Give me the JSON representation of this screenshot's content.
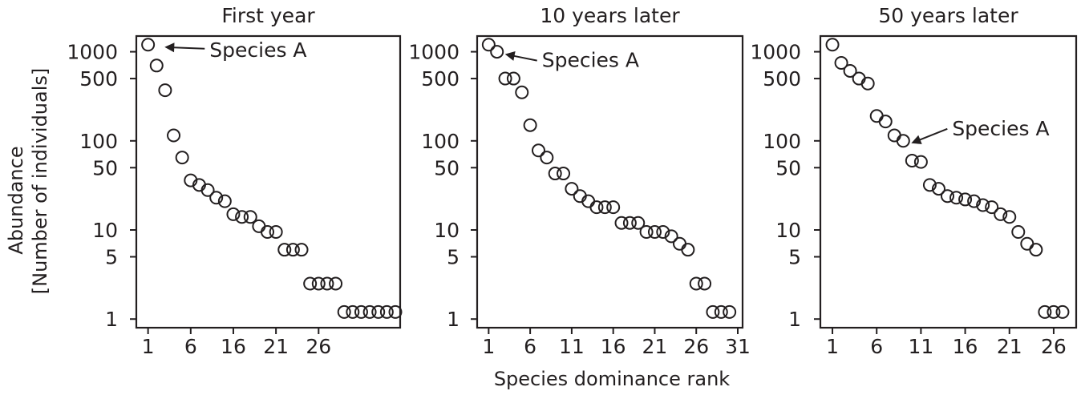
{
  "figure": {
    "ylabel_line1": "Abundance",
    "ylabel_line2": "[Number of individuals]",
    "xlabel": "Species dominance rank"
  },
  "chart_data": [
    {
      "type": "scatter",
      "title": "First year",
      "yscale": "log",
      "ylim": [
        0.8,
        1500
      ],
      "yticks": [
        1,
        5,
        10,
        50,
        100,
        500,
        1000
      ],
      "xlim": [
        0,
        30
      ],
      "xtick_labels": [
        "1",
        "6",
        "16",
        "21",
        "26"
      ],
      "annotation": {
        "text": "Species A",
        "x": 2,
        "y": 1200
      },
      "points": [
        {
          "x": 1,
          "y": 1200
        },
        {
          "x": 2,
          "y": 700
        },
        {
          "x": 3,
          "y": 370
        },
        {
          "x": 4,
          "y": 115
        },
        {
          "x": 5,
          "y": 65
        },
        {
          "x": 6,
          "y": 36
        },
        {
          "x": 7,
          "y": 32
        },
        {
          "x": 8,
          "y": 28
        },
        {
          "x": 9,
          "y": 23
        },
        {
          "x": 10,
          "y": 21
        },
        {
          "x": 11,
          "y": 15
        },
        {
          "x": 12,
          "y": 14
        },
        {
          "x": 13,
          "y": 14
        },
        {
          "x": 14,
          "y": 11
        },
        {
          "x": 15,
          "y": 9.5
        },
        {
          "x": 16,
          "y": 9.5
        },
        {
          "x": 17,
          "y": 6
        },
        {
          "x": 18,
          "y": 6
        },
        {
          "x": 19,
          "y": 6
        },
        {
          "x": 20,
          "y": 2.5
        },
        {
          "x": 21,
          "y": 2.5
        },
        {
          "x": 22,
          "y": 2.5
        },
        {
          "x": 23,
          "y": 2.5
        },
        {
          "x": 24,
          "y": 1.2
        },
        {
          "x": 25,
          "y": 1.2
        },
        {
          "x": 26,
          "y": 1.2
        },
        {
          "x": 27,
          "y": 1.2
        },
        {
          "x": 28,
          "y": 1.2
        },
        {
          "x": 29,
          "y": 1.2
        },
        {
          "x": 30,
          "y": 1.2
        }
      ]
    },
    {
      "type": "scatter",
      "title": "10 years later",
      "yscale": "log",
      "ylim": [
        0.8,
        1500
      ],
      "yticks": [
        1,
        5,
        10,
        50,
        100,
        500,
        1000
      ],
      "xlim": [
        0,
        31
      ],
      "xtick_labels": [
        "1",
        "6",
        "11",
        "16",
        "21",
        "26",
        "31"
      ],
      "annotation": {
        "text": "Species A",
        "x": 2,
        "y": 1000
      },
      "points": [
        {
          "x": 1,
          "y": 1200
        },
        {
          "x": 2,
          "y": 1000
        },
        {
          "x": 3,
          "y": 500
        },
        {
          "x": 4,
          "y": 500
        },
        {
          "x": 5,
          "y": 350
        },
        {
          "x": 6,
          "y": 150
        },
        {
          "x": 7,
          "y": 78
        },
        {
          "x": 8,
          "y": 65
        },
        {
          "x": 9,
          "y": 43
        },
        {
          "x": 10,
          "y": 43
        },
        {
          "x": 11,
          "y": 29
        },
        {
          "x": 12,
          "y": 24
        },
        {
          "x": 13,
          "y": 21
        },
        {
          "x": 14,
          "y": 18
        },
        {
          "x": 15,
          "y": 18
        },
        {
          "x": 16,
          "y": 18
        },
        {
          "x": 17,
          "y": 12
        },
        {
          "x": 18,
          "y": 12
        },
        {
          "x": 19,
          "y": 12
        },
        {
          "x": 20,
          "y": 9.5
        },
        {
          "x": 21,
          "y": 9.5
        },
        {
          "x": 22,
          "y": 9.5
        },
        {
          "x": 23,
          "y": 8.5
        },
        {
          "x": 24,
          "y": 7
        },
        {
          "x": 25,
          "y": 6
        },
        {
          "x": 26,
          "y": 2.5
        },
        {
          "x": 27,
          "y": 2.5
        },
        {
          "x": 28,
          "y": 1.2
        },
        {
          "x": 29,
          "y": 1.2
        },
        {
          "x": 30,
          "y": 1.2
        }
      ]
    },
    {
      "type": "scatter",
      "title": "50 years later",
      "yscale": "log",
      "ylim": [
        0.8,
        1500
      ],
      "yticks": [
        1,
        5,
        10,
        50,
        100,
        500,
        1000
      ],
      "xlim": [
        0,
        28
      ],
      "xtick_labels": [
        "1",
        "6",
        "11",
        "16",
        "21",
        "26"
      ],
      "annotation": {
        "text": "Species A",
        "x": 9,
        "y": 100
      },
      "points": [
        {
          "x": 1,
          "y": 1200
        },
        {
          "x": 2,
          "y": 750
        },
        {
          "x": 3,
          "y": 610
        },
        {
          "x": 4,
          "y": 500
        },
        {
          "x": 5,
          "y": 440
        },
        {
          "x": 6,
          "y": 190
        },
        {
          "x": 7,
          "y": 165
        },
        {
          "x": 8,
          "y": 115
        },
        {
          "x": 9,
          "y": 100
        },
        {
          "x": 10,
          "y": 60
        },
        {
          "x": 11,
          "y": 58
        },
        {
          "x": 12,
          "y": 32
        },
        {
          "x": 13,
          "y": 29
        },
        {
          "x": 14,
          "y": 24
        },
        {
          "x": 15,
          "y": 23
        },
        {
          "x": 16,
          "y": 22
        },
        {
          "x": 17,
          "y": 21
        },
        {
          "x": 18,
          "y": 19
        },
        {
          "x": 19,
          "y": 18
        },
        {
          "x": 20,
          "y": 15
        },
        {
          "x": 21,
          "y": 14
        },
        {
          "x": 22,
          "y": 9.5
        },
        {
          "x": 23,
          "y": 7
        },
        {
          "x": 24,
          "y": 6
        },
        {
          "x": 25,
          "y": 1.2
        },
        {
          "x": 26,
          "y": 1.2
        },
        {
          "x": 27,
          "y": 1.2
        }
      ]
    }
  ]
}
